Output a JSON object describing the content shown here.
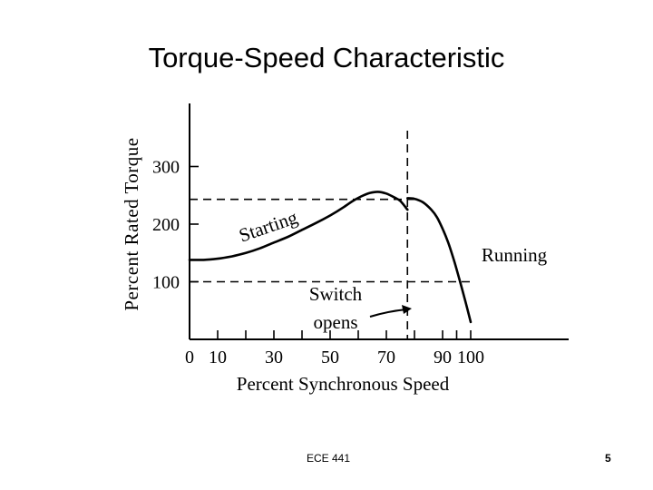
{
  "slide": {
    "title": "Torque-Speed Characteristic",
    "footer_text": "ECE 441",
    "page_number": "5"
  },
  "chart_data": {
    "type": "line",
    "xlabel": "Percent Synchronous Speed",
    "ylabel": "Percent Rated Torque",
    "xlim": [
      0,
      108
    ],
    "ylim": [
      0,
      330
    ],
    "x_ticks": [
      0,
      10,
      20,
      30,
      40,
      50,
      60,
      70,
      80,
      90,
      95,
      100
    ],
    "x_tick_labels": [
      {
        "x": 0,
        "label": "0"
      },
      {
        "x": 10,
        "label": "10"
      },
      {
        "x": 30,
        "label": "30"
      },
      {
        "x": 50,
        "label": "50"
      },
      {
        "x": 70,
        "label": "70"
      },
      {
        "x": 90,
        "label": "90"
      },
      {
        "x": 100,
        "label": "100"
      }
    ],
    "y_ticks": [
      100,
      200,
      300
    ],
    "y_tick_labels": [
      "100",
      "200",
      "300"
    ],
    "series": [
      {
        "name": "Starting",
        "x": [
          0,
          5,
          10,
          15,
          20,
          25,
          30,
          35,
          40,
          45,
          50,
          55,
          58,
          61,
          64,
          67,
          70,
          73,
          75,
          77.5
        ],
        "y": [
          138,
          138,
          140,
          144,
          150,
          158,
          168,
          178,
          190,
          202,
          215,
          230,
          240,
          248,
          254,
          256,
          253,
          246,
          240,
          225
        ]
      },
      {
        "name": "Running",
        "x": [
          77.5,
          80,
          83,
          86,
          88,
          90,
          92,
          94,
          96,
          98,
          100
        ],
        "y": [
          245,
          244,
          238,
          225,
          212,
          192,
          168,
          138,
          104,
          68,
          30
        ]
      }
    ],
    "reference_lines": [
      {
        "orientation": "horizontal",
        "y": 243
      },
      {
        "orientation": "horizontal",
        "y": 100
      },
      {
        "orientation": "vertical",
        "x": 77.5
      }
    ],
    "annotations": [
      {
        "text": "Starting"
      },
      {
        "text": "Running"
      },
      {
        "text": "Switch"
      },
      {
        "text": "opens"
      }
    ],
    "grid": false
  }
}
